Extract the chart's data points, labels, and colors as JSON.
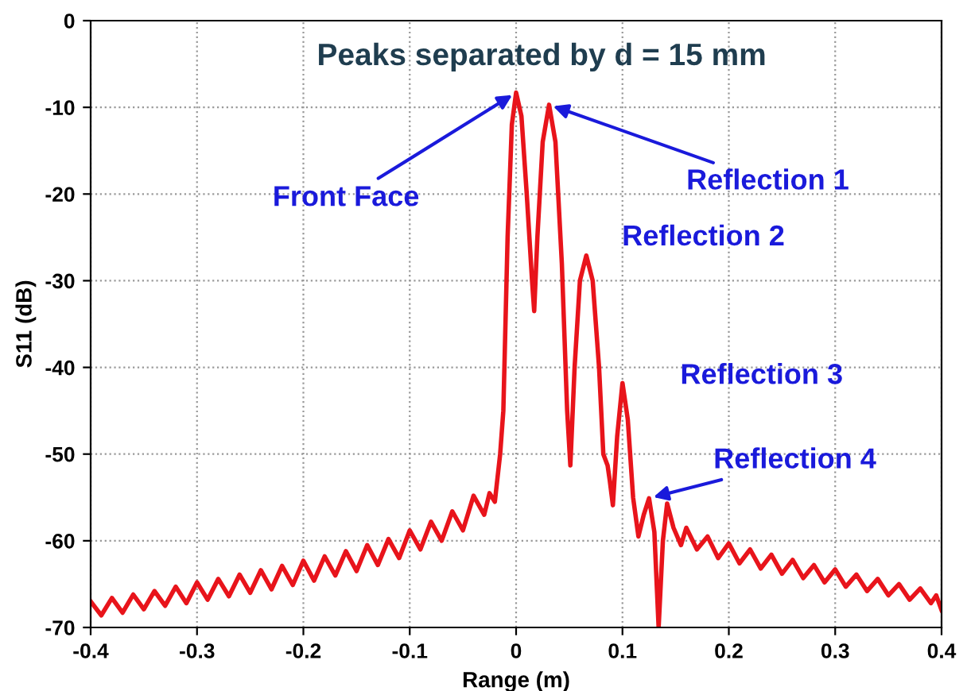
{
  "chart_data": {
    "type": "line",
    "xlabel": "Range (m)",
    "ylabel": "S11 (dB)",
    "xlim": [
      -0.4,
      0.4
    ],
    "ylim": [
      -70,
      0
    ],
    "xticks": [
      -0.4,
      -0.3,
      -0.2,
      -0.1,
      0,
      0.1,
      0.2,
      0.3,
      0.4
    ],
    "yticks": [
      -70,
      -60,
      -50,
      -40,
      -30,
      -20,
      -10,
      0
    ],
    "grid": true,
    "line_style": "solid",
    "marker": "none",
    "series": [
      {
        "color": "#e8141b",
        "x": [
          -0.4,
          -0.39,
          -0.38,
          -0.37,
          -0.36,
          -0.35,
          -0.34,
          -0.33,
          -0.32,
          -0.31,
          -0.3,
          -0.29,
          -0.28,
          -0.27,
          -0.26,
          -0.25,
          -0.24,
          -0.23,
          -0.22,
          -0.21,
          -0.2,
          -0.19,
          -0.18,
          -0.17,
          -0.16,
          -0.15,
          -0.14,
          -0.13,
          -0.12,
          -0.11,
          -0.1,
          -0.09,
          -0.08,
          -0.07,
          -0.06,
          -0.05,
          -0.04,
          -0.03,
          -0.025,
          -0.02,
          -0.015,
          -0.012,
          -0.008,
          -0.004,
          0,
          0.005,
          0.01,
          0.015,
          0.017,
          0.02,
          0.025,
          0.031,
          0.037,
          0.043,
          0.048,
          0.051,
          0.055,
          0.06,
          0.066,
          0.072,
          0.078,
          0.082,
          0.086,
          0.088,
          0.091,
          0.095,
          0.1,
          0.105,
          0.11,
          0.115,
          0.12,
          0.125,
          0.13,
          0.134,
          0.138,
          0.142,
          0.148,
          0.155,
          0.16,
          0.17,
          0.18,
          0.19,
          0.2,
          0.21,
          0.22,
          0.23,
          0.24,
          0.25,
          0.26,
          0.27,
          0.28,
          0.29,
          0.3,
          0.31,
          0.32,
          0.33,
          0.34,
          0.35,
          0.36,
          0.37,
          0.38,
          0.39,
          0.395,
          0.4
        ],
        "values": [
          -67.0,
          -68.6,
          -66.6,
          -68.3,
          -66.2,
          -67.9,
          -65.8,
          -67.5,
          -65.3,
          -67.2,
          -64.8,
          -66.8,
          -64.4,
          -66.4,
          -63.9,
          -66.0,
          -63.4,
          -65.6,
          -62.9,
          -65.1,
          -62.3,
          -64.6,
          -61.8,
          -64.0,
          -61.2,
          -63.5,
          -60.5,
          -62.8,
          -59.8,
          -62.0,
          -58.8,
          -61.0,
          -57.8,
          -60.0,
          -56.6,
          -58.8,
          -54.8,
          -57.0,
          -54.5,
          -55.5,
          -50,
          -45,
          -25,
          -12,
          -8.3,
          -11,
          -20,
          -30,
          -33.5,
          -25,
          -14,
          -9.7,
          -14,
          -28,
          -45,
          -51.3,
          -40,
          -30,
          -27.1,
          -30,
          -40,
          -50,
          -51.3,
          -53,
          -55.9,
          -48,
          -41.8,
          -46,
          -55,
          -59.5,
          -57,
          -55.1,
          -59,
          -70,
          -60,
          -55.7,
          -58.5,
          -60.5,
          -58.5,
          -61,
          -59.5,
          -62,
          -60.3,
          -62.6,
          -61,
          -63.2,
          -61.6,
          -63.8,
          -62.2,
          -64.3,
          -62.8,
          -64.8,
          -63.3,
          -65.3,
          -63.9,
          -65.8,
          -64.4,
          -66.3,
          -65,
          -66.8,
          -65.5,
          -67.2,
          -66.3,
          -68
        ]
      }
    ],
    "annotations": [
      "Peaks separated by d = 15 mm",
      {
        "text": "Front Face",
        "x": 0,
        "y": -8.3
      },
      {
        "text": "Reflection 1",
        "x": 0.031,
        "y": -9.7
      },
      {
        "text": "Reflection 2",
        "x": 0.066,
        "y": -27.1
      },
      {
        "text": "Reflection 3",
        "x": 0.1,
        "y": -41.8
      },
      {
        "text": "Reflection 4",
        "x": 0.125,
        "y": -55.1
      }
    ]
  }
}
